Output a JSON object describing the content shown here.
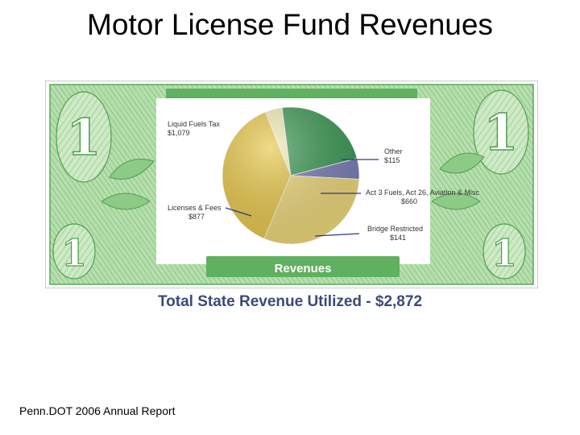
{
  "slide": {
    "title": "Motor License Fund Revenues",
    "footer": "Penn.DOT 2006 Annual Report"
  },
  "chart_data": {
    "type": "pie",
    "title": "Revenues",
    "total_label": "Total State Revenue Utilized - $2,872",
    "slices": [
      {
        "name": "Liquid Fuels Tax",
        "value_label": "$1,079",
        "value": 1079,
        "color": "#e8c84a"
      },
      {
        "name": "Other",
        "value_label": "$115",
        "value": 115,
        "color": "#f4ecb8"
      },
      {
        "name": "Act 3 Fuels, Act 26, Aviation & Misc",
        "value_label": "$660",
        "value": 660,
        "color": "#3f9a56"
      },
      {
        "name": "Bridge Restricted",
        "value_label": "$141",
        "value": 141,
        "color": "#7a7fb4"
      },
      {
        "name": "Licenses & Fees",
        "value_label": "$877",
        "value": 877,
        "color": "#ecd77a"
      }
    ]
  }
}
